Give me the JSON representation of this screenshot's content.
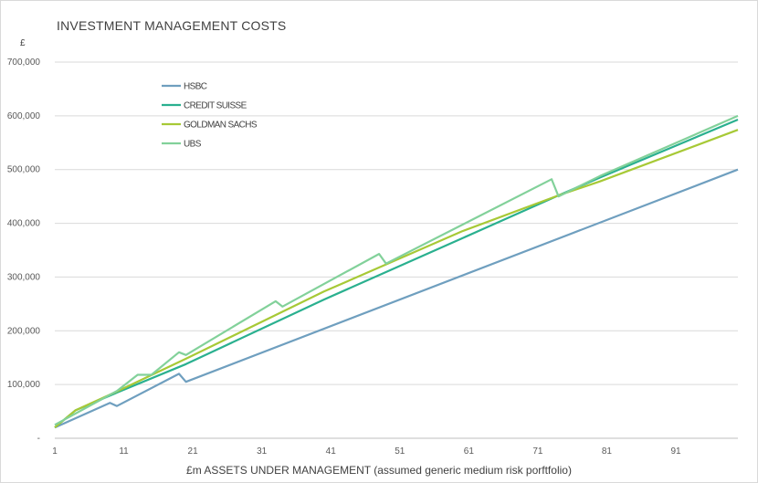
{
  "chart_data": {
    "type": "line",
    "title": "INVESTMENT MANAGEMENT COSTS",
    "y_unit_label": "£",
    "xlabel": "£m ASSETS UNDER MANAGEMENT (assumed generic medium risk porftfolio)",
    "ylabel": "",
    "xlim": [
      1,
      100
    ],
    "ylim": [
      0,
      700000
    ],
    "y_ticks": [
      0,
      100000,
      200000,
      300000,
      400000,
      500000,
      600000,
      700000
    ],
    "y_tick_labels": [
      "-",
      "100,000",
      "200,000",
      "300,000",
      "400,000",
      "500,000",
      "600,000",
      "700,000"
    ],
    "x_ticks": [
      1,
      11,
      21,
      31,
      41,
      51,
      61,
      71,
      81,
      91
    ],
    "x_tick_labels": [
      "1",
      "11",
      "21",
      "31",
      "41",
      "51",
      "61",
      "71",
      "81",
      "91"
    ],
    "grid": "horizontal",
    "legend_position": "top-left",
    "series": [
      {
        "name": "HSBC",
        "color": "#6f9fbf",
        "points": [
          [
            1,
            20000
          ],
          [
            9,
            66000
          ],
          [
            10,
            60000
          ],
          [
            19,
            120000
          ],
          [
            20,
            105000
          ],
          [
            100,
            500000
          ]
        ]
      },
      {
        "name": "CREDIT SUISSE",
        "color": "#2ab08f",
        "points": [
          [
            1,
            20000
          ],
          [
            4,
            52000
          ],
          [
            10,
            85000
          ],
          [
            20,
            138000
          ],
          [
            40,
            258000
          ],
          [
            60,
            372000
          ],
          [
            74,
            452000
          ],
          [
            80,
            485000
          ],
          [
            100,
            593000
          ]
        ]
      },
      {
        "name": "GOLDMAN SACHS",
        "color": "#a7c936",
        "points": [
          [
            1,
            20000
          ],
          [
            4,
            52000
          ],
          [
            10,
            87000
          ],
          [
            20,
            148000
          ],
          [
            40,
            273000
          ],
          [
            60,
            385000
          ],
          [
            74,
            452000
          ],
          [
            80,
            478000
          ],
          [
            100,
            574000
          ]
        ]
      },
      {
        "name": "UBS",
        "color": "#82d19a",
        "points": [
          [
            1,
            25000
          ],
          [
            10,
            88000
          ],
          [
            13,
            118000
          ],
          [
            15,
            118000
          ],
          [
            19,
            160000
          ],
          [
            20,
            155000
          ],
          [
            33,
            255000
          ],
          [
            34,
            245000
          ],
          [
            48,
            343000
          ],
          [
            49,
            325000
          ],
          [
            73,
            482000
          ],
          [
            74,
            450000
          ],
          [
            80,
            488000
          ],
          [
            100,
            600000
          ]
        ]
      }
    ]
  }
}
